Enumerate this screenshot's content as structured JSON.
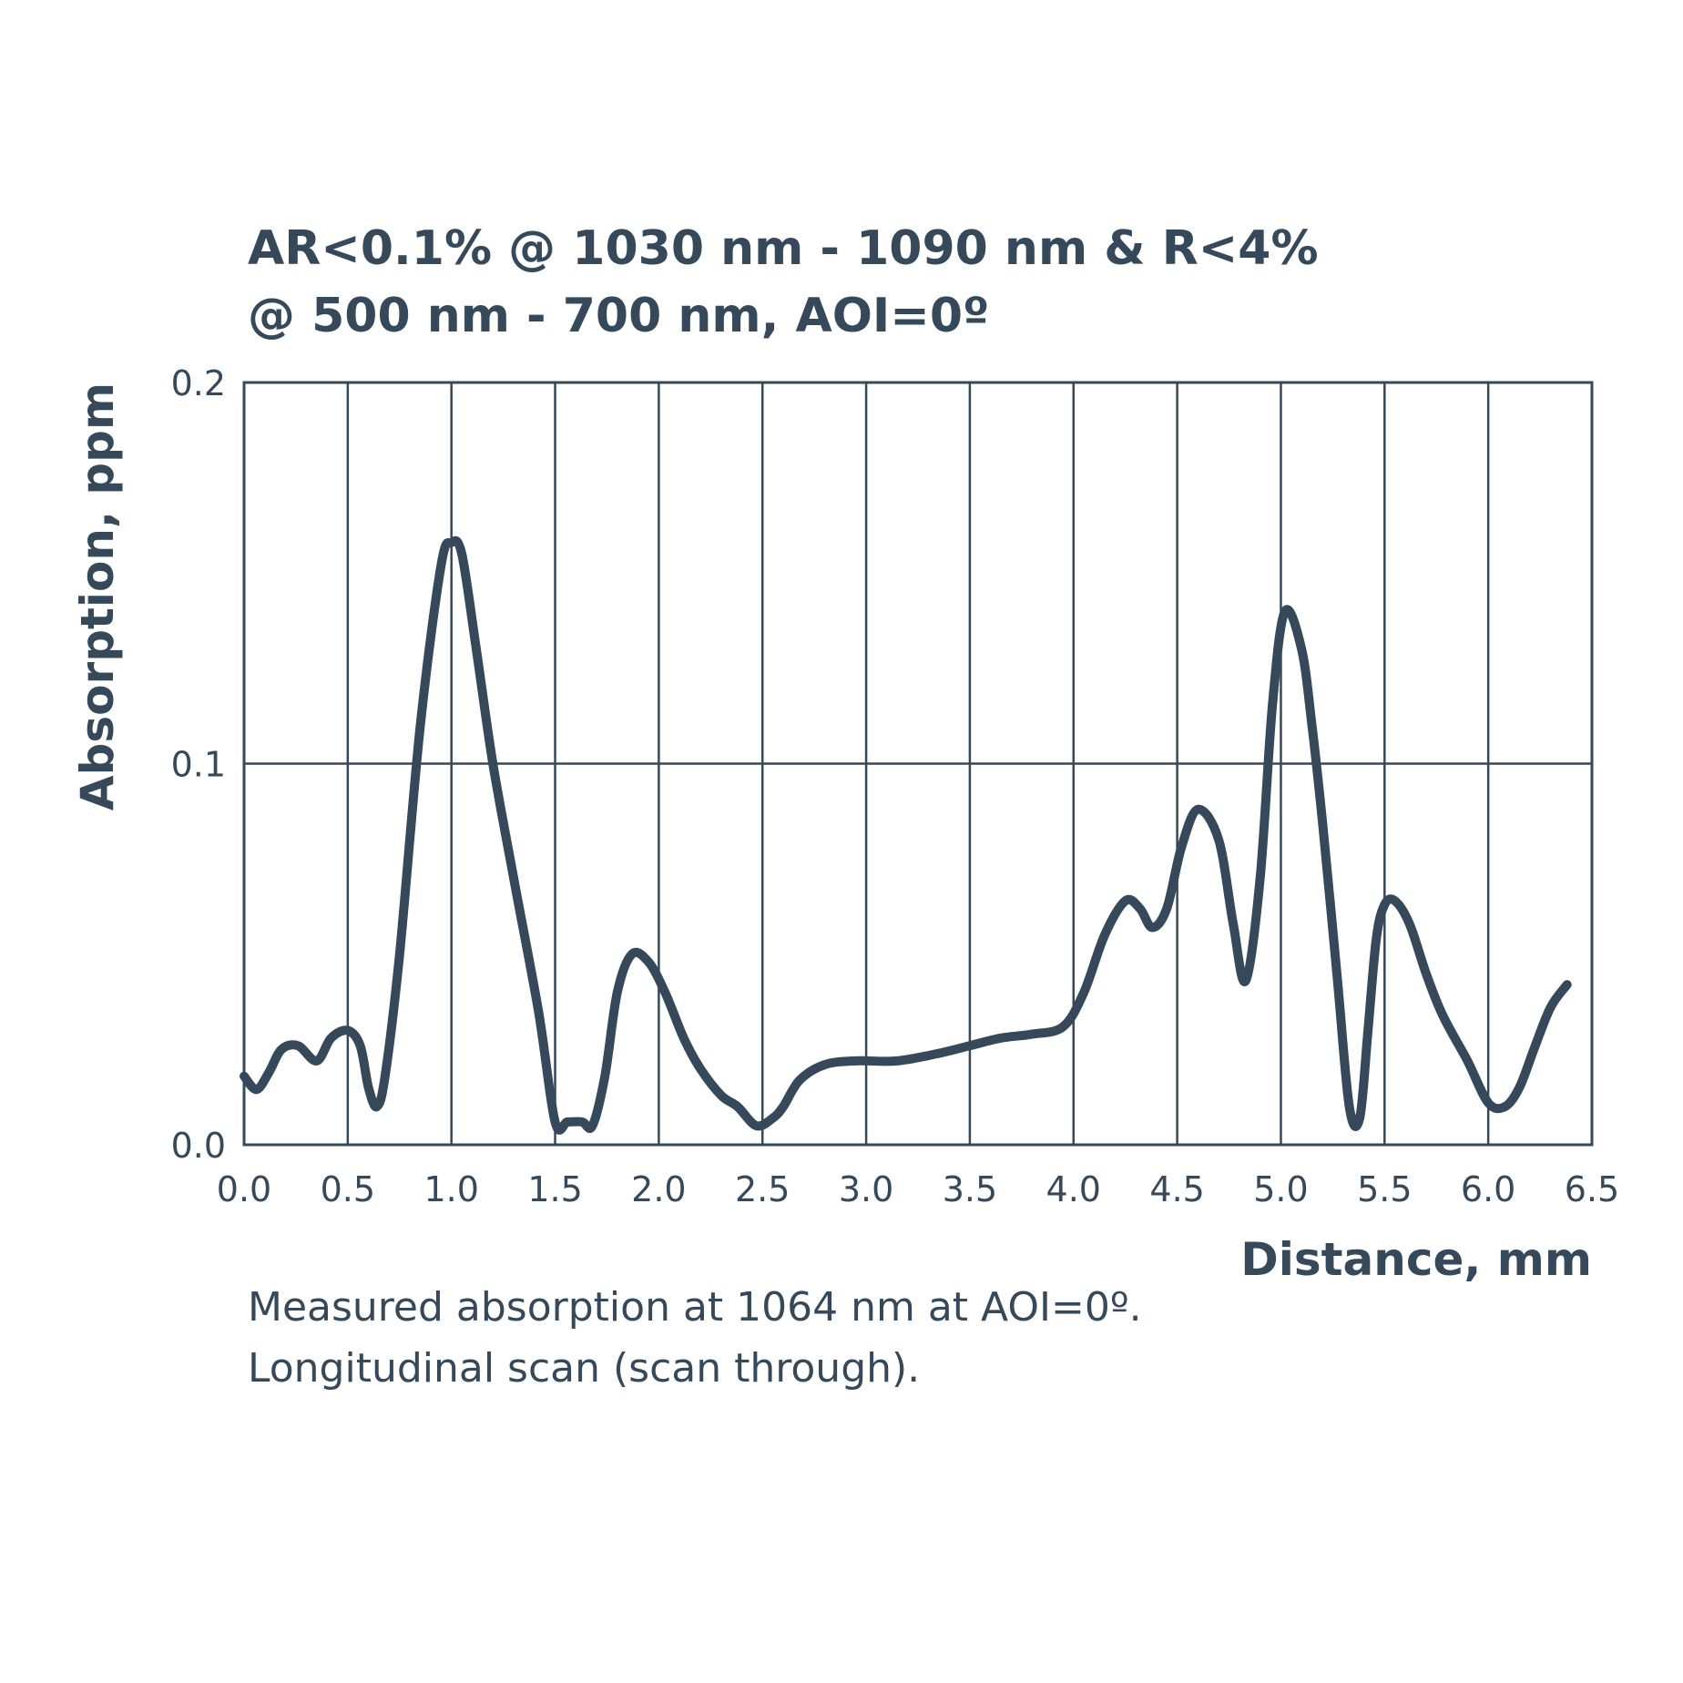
{
  "colors": {
    "ink": "#36495a",
    "grid": "#36495a",
    "background": "#ffffff"
  },
  "chart_data": {
    "type": "line",
    "title_lines": [
      "AR<0.1% @ 1030 nm - 1090 nm & R<4%",
      "@ 500 nm - 700 nm, AOI=0º"
    ],
    "xlabel": "Distance, mm",
    "ylabel": "Absorption, ppm",
    "xlim": [
      0,
      6.5
    ],
    "ylim": [
      0,
      0.2
    ],
    "x_ticks": [
      "0.0",
      "0.5",
      "1.0",
      "1.5",
      "2.0",
      "2.5",
      "3.0",
      "3.5",
      "4.0",
      "4.5",
      "5.0",
      "5.5",
      "6.0",
      "6.5"
    ],
    "y_ticks": [
      "0.0",
      "0.1",
      "0.2"
    ],
    "x_grid_step": 0.5,
    "y_grid_values": [
      0.1
    ],
    "caption_lines": [
      "Measured absorption at 1064 nm at AOI=0º.",
      "Longitudinal scan (scan through)."
    ],
    "series": [
      {
        "name": "Absorption",
        "x": [
          0.0,
          0.06,
          0.12,
          0.18,
          0.26,
          0.35,
          0.42,
          0.5,
          0.56,
          0.6,
          0.64,
          0.68,
          0.75,
          0.85,
          0.95,
          1.0,
          1.05,
          1.12,
          1.2,
          1.3,
          1.42,
          1.5,
          1.56,
          1.63,
          1.68,
          1.74,
          1.8,
          1.87,
          1.95,
          2.03,
          2.12,
          2.2,
          2.3,
          2.38,
          2.47,
          2.55,
          2.6,
          2.68,
          2.8,
          2.95,
          3.15,
          3.35,
          3.5,
          3.65,
          3.8,
          3.95,
          4.05,
          4.15,
          4.25,
          4.32,
          4.38,
          4.45,
          4.52,
          4.6,
          4.7,
          4.77,
          4.83,
          4.9,
          4.96,
          5.02,
          5.1,
          5.15,
          5.2,
          5.27,
          5.33,
          5.38,
          5.42,
          5.46,
          5.5,
          5.55,
          5.62,
          5.7,
          5.78,
          5.9,
          6.0,
          6.08,
          6.15,
          6.22,
          6.3,
          6.38
        ],
        "y": [
          0.018,
          0.0145,
          0.019,
          0.025,
          0.026,
          0.022,
          0.028,
          0.03,
          0.026,
          0.015,
          0.01,
          0.018,
          0.05,
          0.11,
          0.152,
          0.158,
          0.155,
          0.13,
          0.1,
          0.07,
          0.035,
          0.006,
          0.006,
          0.006,
          0.005,
          0.018,
          0.04,
          0.05,
          0.048,
          0.04,
          0.028,
          0.02,
          0.013,
          0.01,
          0.005,
          0.007,
          0.01,
          0.017,
          0.021,
          0.022,
          0.022,
          0.024,
          0.026,
          0.028,
          0.029,
          0.031,
          0.04,
          0.055,
          0.064,
          0.062,
          0.057,
          0.062,
          0.078,
          0.088,
          0.08,
          0.058,
          0.043,
          0.07,
          0.116,
          0.14,
          0.13,
          0.11,
          0.085,
          0.045,
          0.01,
          0.007,
          0.03,
          0.054,
          0.063,
          0.064,
          0.058,
          0.045,
          0.034,
          0.022,
          0.011,
          0.01,
          0.015,
          0.025,
          0.036,
          0.042
        ]
      }
    ]
  }
}
